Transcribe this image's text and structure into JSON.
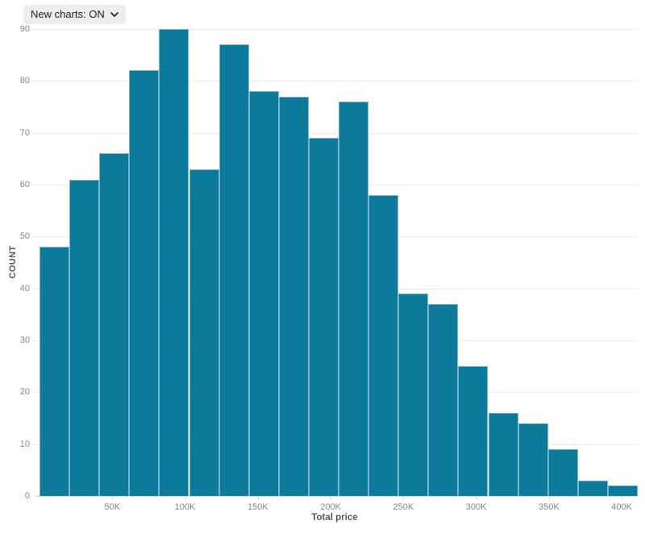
{
  "controls": {
    "new_charts_toggle": {
      "label": "New charts: ON"
    }
  },
  "chart_data": {
    "type": "bar",
    "subtype": "histogram",
    "title": "",
    "xlabel": "Total price",
    "ylabel": "COUNT",
    "values": [
      48,
      61,
      66,
      82,
      90,
      63,
      87,
      78,
      77,
      69,
      76,
      58,
      39,
      37,
      25,
      16,
      14,
      9,
      3,
      2
    ],
    "bins": {
      "start_k": 0,
      "end_k": 411,
      "count": 20
    },
    "x_ticks": [
      {
        "value_k": 50,
        "label": "50K"
      },
      {
        "value_k": 100,
        "label": "100K"
      },
      {
        "value_k": 150,
        "label": "150K"
      },
      {
        "value_k": 200,
        "label": "200K"
      },
      {
        "value_k": 250,
        "label": "250K"
      },
      {
        "value_k": 300,
        "label": "300K"
      },
      {
        "value_k": 350,
        "label": "350K"
      },
      {
        "value_k": 400,
        "label": "400K"
      }
    ],
    "y_ticks": [
      0,
      10,
      20,
      30,
      40,
      50,
      60,
      70,
      80,
      90
    ],
    "ylim": [
      0,
      90
    ],
    "grid": "horizontal-only",
    "legend": "none",
    "colors": {
      "bar_fill": "#0b7a9b",
      "bar_stroke": "#7db6cc",
      "grid_line": "#ededed",
      "axis_line": "#d2d2d2",
      "tick_label": "#82878c",
      "axis_title": "#55595e"
    }
  }
}
